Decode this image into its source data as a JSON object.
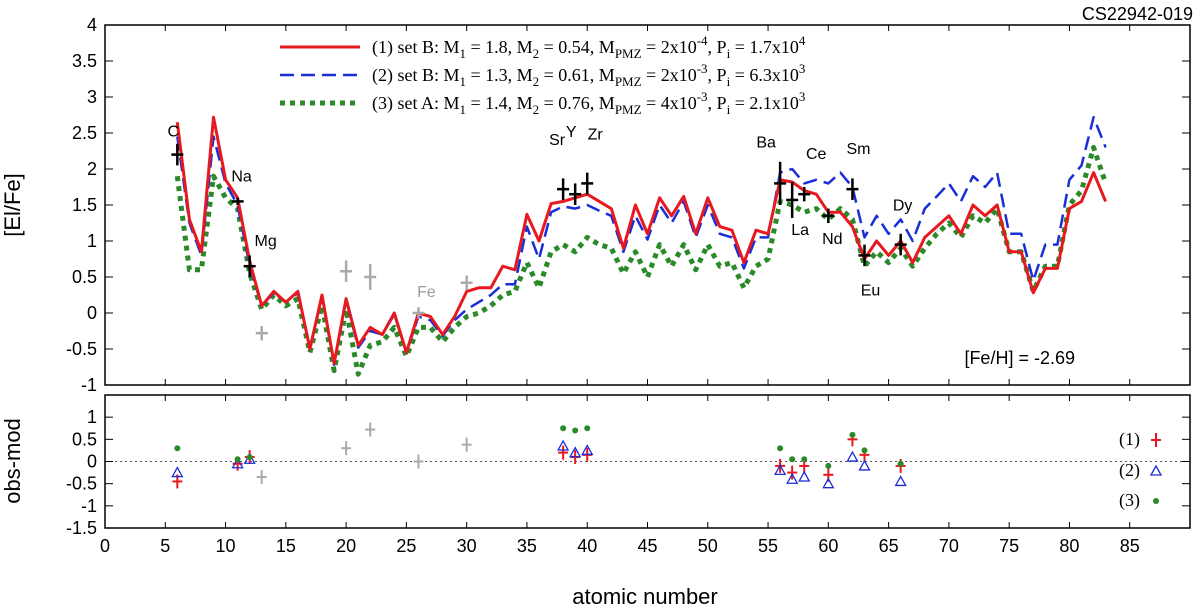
{
  "chart_data": [
    {
      "type": "line",
      "star_label": "CS22942-019",
      "ylabel": "[El/Fe]",
      "xlim": [
        0,
        90
      ],
      "ylim": [
        -1,
        4
      ],
      "xticks": [
        0,
        5,
        10,
        15,
        20,
        25,
        30,
        35,
        40,
        45,
        50,
        55,
        60,
        65,
        70,
        75,
        80,
        85
      ],
      "yticks": [
        -1,
        -0.5,
        0,
        0.5,
        1,
        1.5,
        2,
        2.5,
        3,
        3.5,
        4
      ],
      "ytick_labels": [
        "-1",
        "-0.5",
        "0",
        "0.5",
        "1",
        "1.5",
        "2",
        "2.5",
        "3",
        "3.5",
        "4"
      ],
      "metallicity_label": "[Fe/H] = -2.69",
      "legend": [
        {
          "pre": "(1) set B: M",
          "s1": "1",
          "m1": " = 1.8,  M",
          "s2": "2",
          "m2": " = 0.54,  M",
          "s3": "PMZ",
          "m3": " = 2x10",
          "e1": "-4",
          "m4": ",  P",
          "s4": "i",
          "m5": " = 1.7x10",
          "e2": "4",
          "color": "#e8191e"
        },
        {
          "pre": "(2) set B: M",
          "s1": "1",
          "m1": " = 1.3,  M",
          "s2": "2",
          "m2": " = 0.61,  M",
          "s3": "PMZ",
          "m3": " = 2x10",
          "e1": "-3",
          "m4": ",  P",
          "s4": "i",
          "m5": " = 6.3x10",
          "e2": "3",
          "color": "#1a2ed8"
        },
        {
          "pre": "(3) set A: M",
          "s1": "1",
          "m1": " = 1.4,  M",
          "s2": "2",
          "m2": " = 0.76,  M",
          "s3": "PMZ",
          "m3": " = 4x10",
          "e1": "-3",
          "m4": ",  P",
          "s4": "i",
          "m5": " = 2.1x10",
          "e2": "3",
          "color": "#2a8a2a"
        }
      ],
      "series": [
        {
          "name": "(1) set B",
          "color": "#e8191e",
          "dash": "none",
          "width": 3,
          "x": [
            6,
            7,
            8,
            9,
            10,
            11,
            12,
            13,
            14,
            15,
            16,
            17,
            18,
            19,
            20,
            21,
            22,
            23,
            24,
            25,
            26,
            27,
            28,
            29,
            30,
            31,
            32,
            33,
            34,
            35,
            36,
            37,
            38,
            39,
            40,
            41,
            42,
            43,
            44,
            45,
            46,
            47,
            48,
            49,
            50,
            51,
            52,
            53,
            54,
            55,
            56,
            57,
            58,
            59,
            60,
            61,
            62,
            63,
            64,
            65,
            66,
            67,
            68,
            69,
            70,
            71,
            72,
            73,
            74,
            75,
            76,
            77,
            78,
            79,
            80,
            81,
            82,
            83
          ],
          "y": [
            2.65,
            1.3,
            0.85,
            2.72,
            1.85,
            1.6,
            0.72,
            0.1,
            0.3,
            0.15,
            0.3,
            -0.5,
            0.25,
            -0.7,
            0.2,
            -0.45,
            -0.2,
            -0.3,
            0,
            -0.55,
            0,
            -0.05,
            -0.3,
            -0.05,
            0.3,
            0.35,
            0.35,
            0.65,
            0.6,
            1.37,
            1.0,
            1.52,
            1.55,
            1.6,
            1.65,
            1.55,
            1.45,
            0.9,
            1.5,
            1.1,
            1.6,
            1.35,
            1.62,
            1.1,
            1.6,
            1.2,
            1.15,
            0.7,
            1.15,
            1.1,
            1.85,
            1.82,
            1.7,
            1.65,
            1.4,
            1.4,
            1.2,
            0.75,
            1.0,
            0.8,
            1.0,
            0.7,
            1.05,
            1.2,
            1.35,
            1.1,
            1.5,
            1.35,
            1.5,
            0.85,
            0.85,
            0.28,
            0.62,
            0.62,
            1.45,
            1.55,
            1.95,
            1.55
          ]
        },
        {
          "name": "(2) set B",
          "color": "#1a2ed8",
          "dash": "14,7",
          "width": 2.5,
          "x": [
            6,
            7,
            8,
            9,
            10,
            11,
            12,
            13,
            14,
            15,
            16,
            17,
            18,
            19,
            20,
            21,
            22,
            23,
            24,
            25,
            26,
            27,
            28,
            29,
            30,
            31,
            32,
            33,
            34,
            35,
            36,
            37,
            38,
            39,
            40,
            41,
            42,
            43,
            44,
            45,
            46,
            47,
            48,
            49,
            50,
            51,
            52,
            53,
            54,
            55,
            56,
            57,
            58,
            59,
            60,
            61,
            62,
            63,
            64,
            65,
            66,
            67,
            68,
            69,
            70,
            71,
            72,
            73,
            74,
            75,
            76,
            77,
            78,
            79,
            80,
            81,
            82,
            83
          ],
          "y": [
            2.45,
            1.25,
            0.8,
            2.45,
            1.8,
            1.5,
            0.65,
            0.1,
            0.28,
            0.15,
            0.28,
            -0.48,
            0.22,
            -0.72,
            0.18,
            -0.48,
            -0.25,
            -0.3,
            -0.02,
            -0.55,
            -0.05,
            -0.1,
            -0.32,
            -0.1,
            0.05,
            0.15,
            0.25,
            0.4,
            0.4,
            1.2,
            0.75,
            1.4,
            1.48,
            1.45,
            1.5,
            1.42,
            1.35,
            0.85,
            1.35,
            1.02,
            1.5,
            1.25,
            1.55,
            1.05,
            1.5,
            1.1,
            1.05,
            0.62,
            1.05,
            1.05,
            1.95,
            2.0,
            1.8,
            1.85,
            1.8,
            1.95,
            1.75,
            1.05,
            1.35,
            1.1,
            1.3,
            1.0,
            1.45,
            1.62,
            1.8,
            1.55,
            1.9,
            1.75,
            1.95,
            1.1,
            1.1,
            0.45,
            0.95,
            0.95,
            1.85,
            2.05,
            2.72,
            2.3
          ]
        },
        {
          "name": "(3) set A",
          "color": "#2a8a2a",
          "dash": "5,5",
          "width": 5,
          "x": [
            6,
            7,
            8,
            9,
            10,
            11,
            12,
            13,
            14,
            15,
            16,
            17,
            18,
            19,
            20,
            21,
            22,
            23,
            24,
            25,
            26,
            27,
            28,
            29,
            30,
            31,
            32,
            33,
            34,
            35,
            36,
            37,
            38,
            39,
            40,
            41,
            42,
            43,
            44,
            45,
            46,
            47,
            48,
            49,
            50,
            51,
            52,
            53,
            54,
            55,
            56,
            57,
            58,
            59,
            60,
            61,
            62,
            63,
            64,
            65,
            66,
            67,
            68,
            69,
            70,
            71,
            72,
            73,
            74,
            75,
            76,
            77,
            78,
            79,
            80,
            81,
            82,
            83
          ],
          "y": [
            1.9,
            0.6,
            0.6,
            1.9,
            1.6,
            1.45,
            0.55,
            0.05,
            0.25,
            0.1,
            0.2,
            -0.55,
            0.1,
            -0.8,
            0.05,
            -0.85,
            -0.45,
            -0.4,
            -0.2,
            -0.6,
            -0.2,
            -0.2,
            -0.4,
            -0.2,
            -0.05,
            0,
            0.1,
            0.25,
            0.3,
            0.7,
            0.35,
            0.85,
            0.95,
            0.85,
            1.05,
            0.95,
            0.9,
            0.55,
            0.85,
            0.5,
            0.95,
            0.65,
            0.95,
            0.6,
            0.95,
            0.65,
            0.7,
            0.35,
            0.65,
            0.75,
            1.55,
            1.5,
            1.4,
            1.45,
            1.3,
            1.45,
            1.3,
            0.65,
            0.85,
            0.7,
            0.9,
            0.65,
            0.9,
            1.1,
            1.25,
            1.05,
            1.35,
            1.25,
            1.45,
            0.85,
            0.85,
            0.3,
            0.65,
            0.65,
            1.5,
            1.7,
            2.3,
            1.8
          ]
        }
      ],
      "observations": [
        {
          "x": 6,
          "y": 2.2,
          "err": 0.15,
          "label": "C",
          "gray": false
        },
        {
          "x": 11,
          "y": 1.55,
          "err": 0.05,
          "label": "Na",
          "gray": false
        },
        {
          "x": 12,
          "y": 0.65,
          "err": 0.15,
          "label": "Mg",
          "gray": false
        },
        {
          "x": 13,
          "y": -0.28,
          "err": 0.1,
          "label": "",
          "gray": true
        },
        {
          "x": 20,
          "y": 0.58,
          "err": 0.15,
          "label": "",
          "gray": true
        },
        {
          "x": 22,
          "y": 0.5,
          "err": 0.18,
          "label": "",
          "gray": true
        },
        {
          "x": 26,
          "y": 0.0,
          "err": 0.08,
          "label": "Fe",
          "gray": true
        },
        {
          "x": 30,
          "y": 0.42,
          "err": 0.1,
          "label": "",
          "gray": true
        },
        {
          "x": 38,
          "y": 1.72,
          "err": 0.15,
          "label": "Sr",
          "gray": false
        },
        {
          "x": 39,
          "y": 1.65,
          "err": 0.15,
          "label": "Y",
          "gray": false
        },
        {
          "x": 40,
          "y": 1.8,
          "err": 0.15,
          "label": "Zr",
          "gray": false
        },
        {
          "x": 56,
          "y": 1.8,
          "err": 0.3,
          "label": "Ba",
          "gray": false
        },
        {
          "x": 57,
          "y": 1.57,
          "err": 0.25,
          "label": "La",
          "gray": false
        },
        {
          "x": 58,
          "y": 1.65,
          "err": 0.1,
          "label": "Ce",
          "gray": false
        },
        {
          "x": 60,
          "y": 1.35,
          "err": 0.1,
          "label": "Nd",
          "gray": false
        },
        {
          "x": 62,
          "y": 1.72,
          "err": 0.15,
          "label": "Sm",
          "gray": false
        },
        {
          "x": 63,
          "y": 0.8,
          "err": 0.15,
          "label": "Eu",
          "gray": false
        },
        {
          "x": 66,
          "y": 0.95,
          "err": 0.15,
          "label": "Dy",
          "gray": false
        }
      ]
    },
    {
      "type": "scatter",
      "ylabel": "obs-mod",
      "xlabel": "atomic number",
      "xlim": [
        0,
        90
      ],
      "ylim": [
        -1.5,
        1.5
      ],
      "xticks": [
        0,
        5,
        10,
        15,
        20,
        25,
        30,
        35,
        40,
        45,
        50,
        55,
        60,
        65,
        70,
        75,
        80,
        85
      ],
      "yticks": [
        -1.5,
        -1,
        -0.5,
        0,
        0.5,
        1
      ],
      "ytick_labels": [
        "-1.5",
        "-1",
        "-0.5",
        "0",
        "0.5",
        "1"
      ],
      "legend": [
        {
          "label": "(1)",
          "marker": "plus",
          "color": "#e8191e"
        },
        {
          "label": "(2)",
          "marker": "triangle",
          "color": "#1a2ed8"
        },
        {
          "label": "(3)",
          "marker": "dot",
          "color": "#2a8a2a"
        }
      ],
      "series": [
        {
          "name": "(1)",
          "marker": "plus",
          "color": "#e8191e",
          "x": [
            6,
            11,
            12,
            38,
            39,
            40,
            56,
            57,
            58,
            60,
            62,
            63,
            66
          ],
          "y": [
            -0.45,
            -0.05,
            0.1,
            0.2,
            0.1,
            0.15,
            -0.1,
            -0.25,
            -0.1,
            -0.3,
            0.5,
            0.15,
            -0.1
          ]
        },
        {
          "name": "(2)",
          "marker": "triangle",
          "color": "#1a2ed8",
          "x": [
            6,
            11,
            12,
            38,
            39,
            40,
            56,
            57,
            58,
            60,
            62,
            63,
            66
          ],
          "y": [
            -0.25,
            -0.05,
            0.05,
            0.35,
            0.2,
            0.25,
            -0.2,
            -0.4,
            -0.35,
            -0.5,
            0.1,
            -0.1,
            -0.45
          ]
        },
        {
          "name": "(3)",
          "marker": "dot",
          "color": "#2a8a2a",
          "x": [
            6,
            11,
            12,
            38,
            39,
            40,
            56,
            57,
            58,
            60,
            62,
            63,
            66
          ],
          "y": [
            0.3,
            0.05,
            0.1,
            0.75,
            0.7,
            0.75,
            0.3,
            0.05,
            0.05,
            -0.1,
            0.6,
            0.25,
            -0.05
          ]
        },
        {
          "name": "gray",
          "marker": "plus",
          "color": "#aaaaaa",
          "x": [
            13,
            20,
            22,
            26,
            30
          ],
          "y": [
            -0.35,
            0.3,
            0.72,
            0.0,
            0.38
          ]
        }
      ]
    }
  ]
}
